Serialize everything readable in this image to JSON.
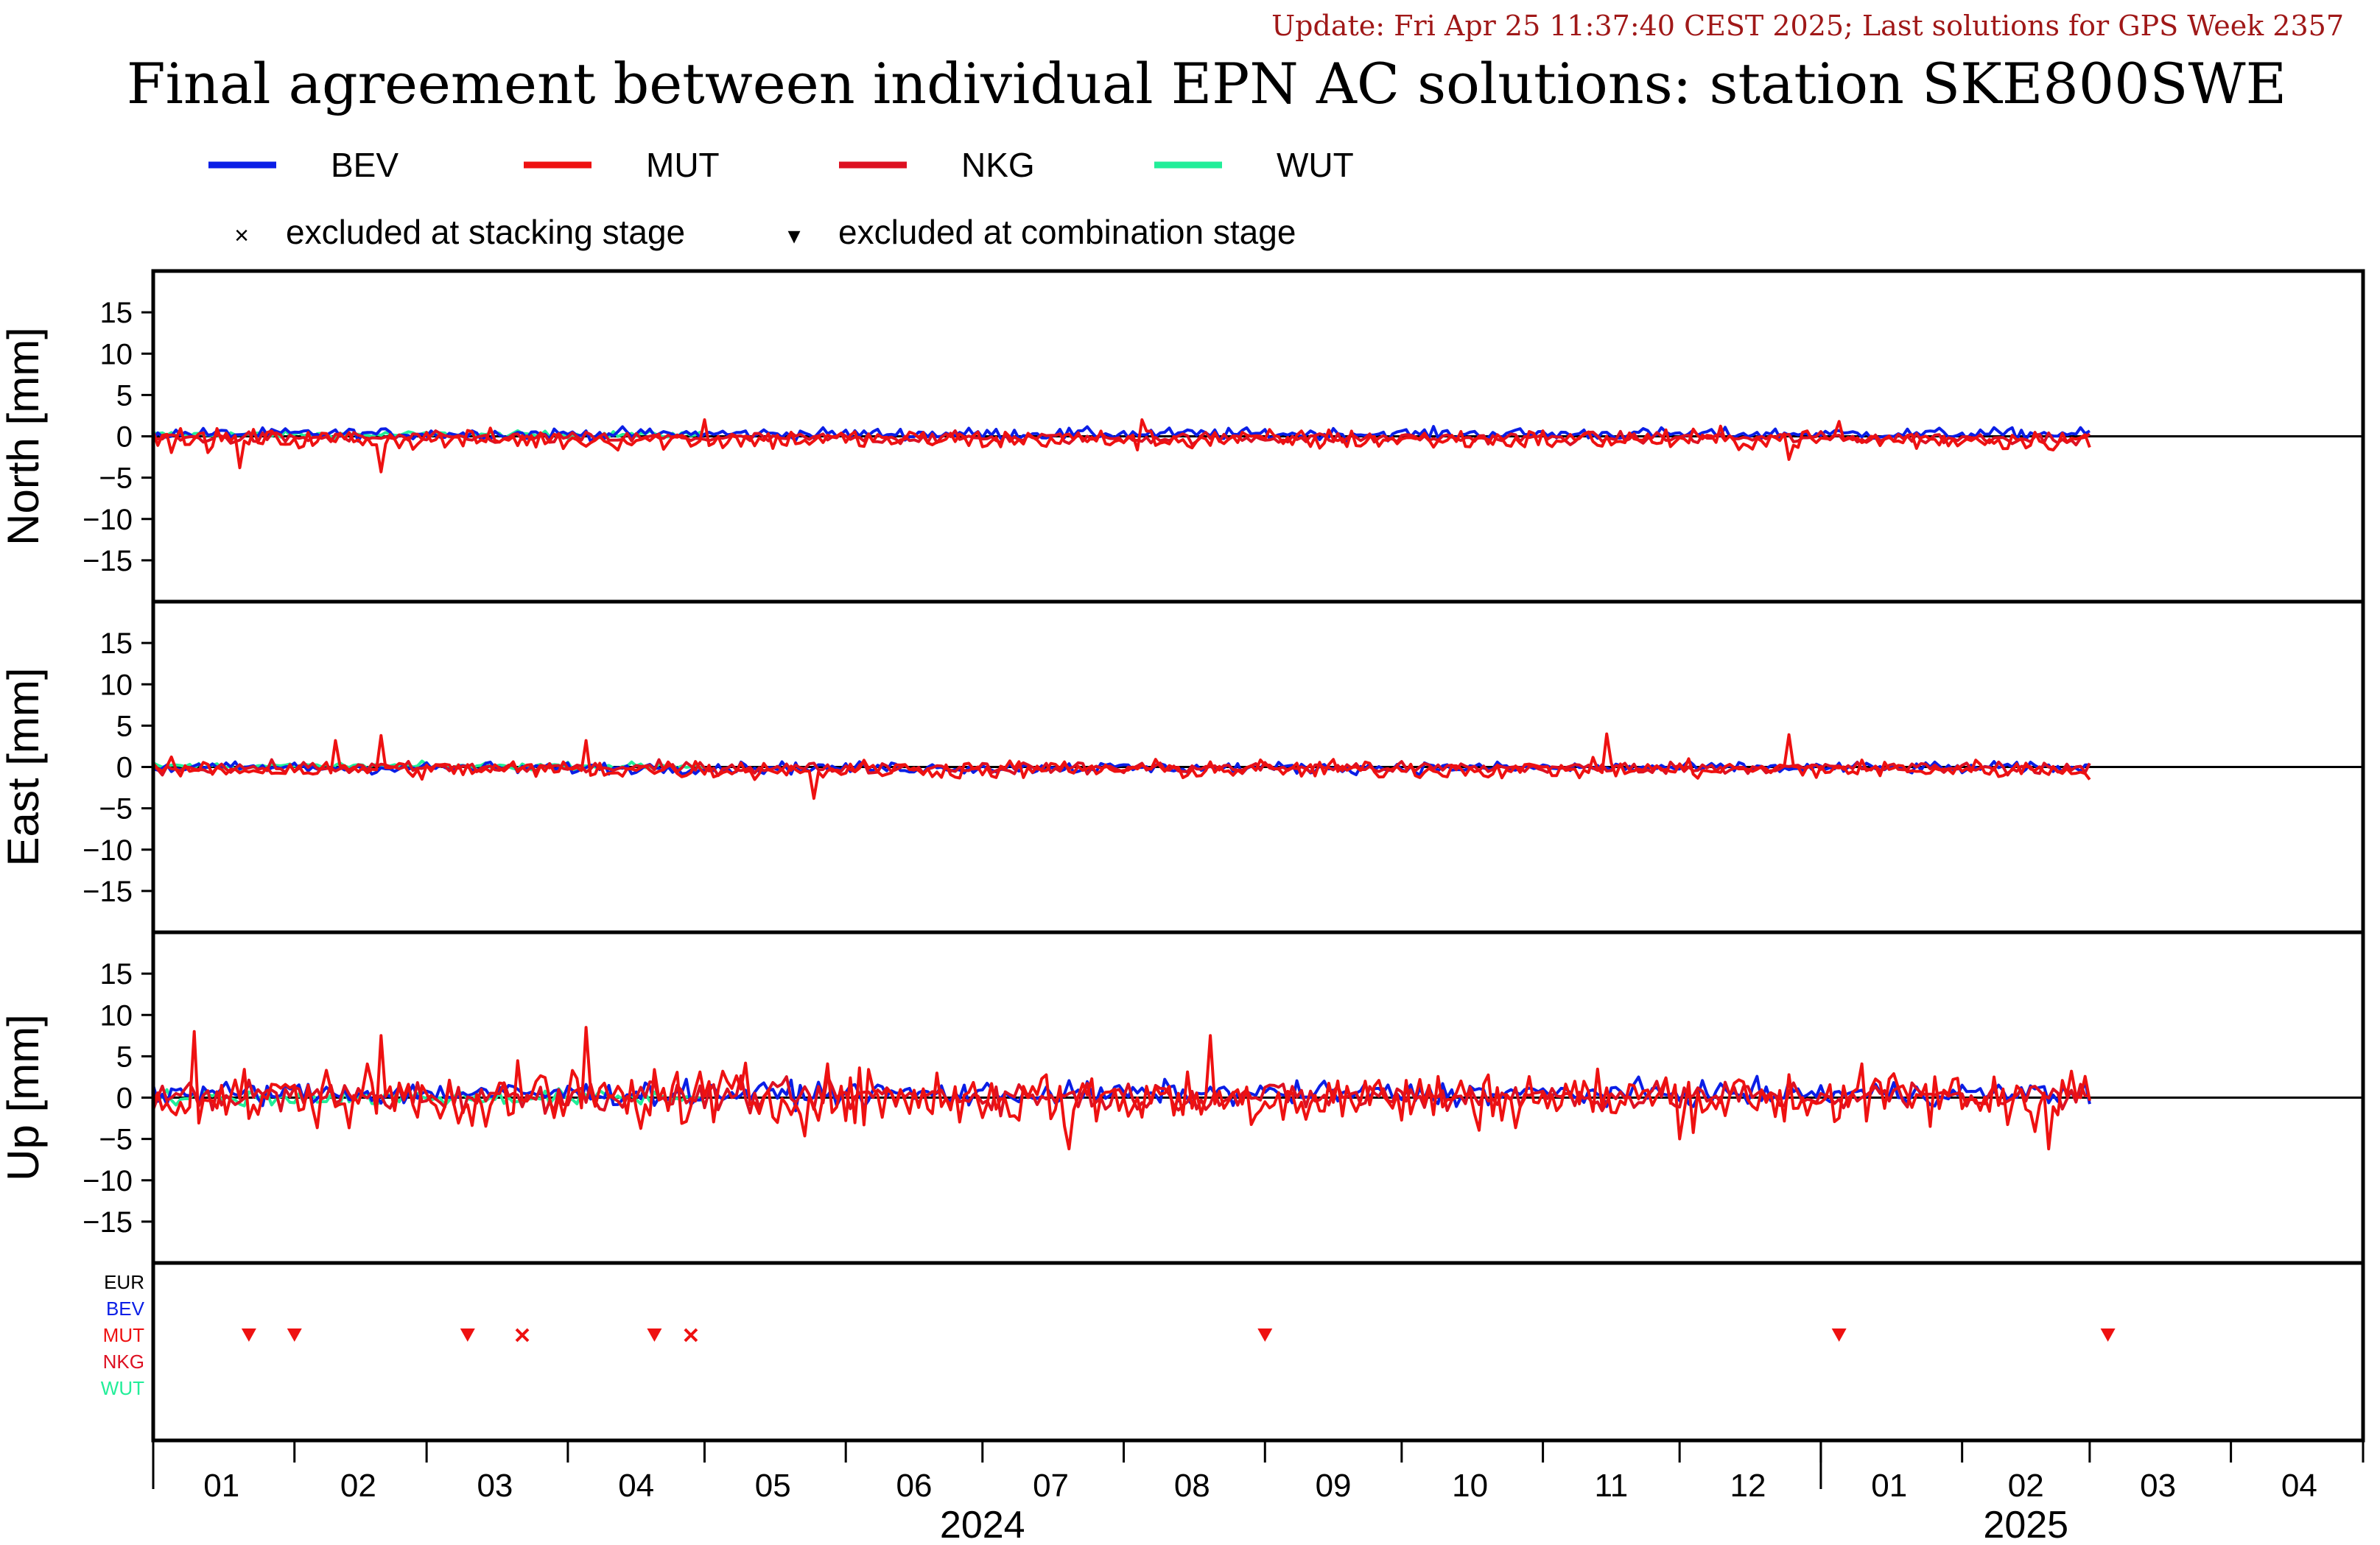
{
  "update_text": "Update: Fri Apr 25 11:37:40 CEST 2025; Last solutions for GPS Week 2357",
  "title": "Final agreement between individual EPN AC solutions: station SKE800SWE",
  "colors": {
    "BEV": "#0a1ee6",
    "MUT": "#ee1111",
    "NKG": "#dd1122",
    "WUT": "#22ee99",
    "EUR": "#000000",
    "markers": "#ee1111"
  },
  "legend": [
    {
      "name": "BEV",
      "color": "#0a1ee6"
    },
    {
      "name": "MUT",
      "color": "#ee1111"
    },
    {
      "name": "NKG",
      "color": "#dd1122"
    },
    {
      "name": "WUT",
      "color": "#22ee99"
    }
  ],
  "marker_legend": {
    "stacking_symbol": "×",
    "stacking_label": "excluded at stacking stage",
    "combination_symbol": "▾",
    "combination_label": "excluded at combination stage"
  },
  "chart_data": {
    "type": "line",
    "x_unit": "date",
    "x_range": [
      "2024-01-01",
      "2025-04-30"
    ],
    "ylim": [
      -20,
      20
    ],
    "ytick_labels": [
      "15",
      "10",
      "5",
      "0",
      "−5",
      "−10",
      "−15"
    ],
    "ytick_values": [
      15,
      10,
      5,
      0,
      -5,
      -10,
      -15
    ],
    "panels": [
      {
        "ylabel": "North [mm]",
        "series": [
          {
            "name": "BEV",
            "amp": 0.5,
            "bias": 0.3
          },
          {
            "name": "MUT",
            "amp": 0.9,
            "bias": -0.4
          },
          {
            "name": "NKG",
            "amp": 0.5,
            "bias": -0.2
          },
          {
            "name": "WUT",
            "amp": 0.3,
            "bias": 0.2
          }
        ]
      },
      {
        "ylabel": "East [mm]",
        "series": [
          {
            "name": "BEV",
            "amp": 0.5,
            "bias": -0.1
          },
          {
            "name": "MUT",
            "amp": 0.8,
            "bias": -0.3
          },
          {
            "name": "NKG",
            "amp": 0.5,
            "bias": -0.1
          },
          {
            "name": "WUT",
            "amp": 0.3,
            "bias": 0.1
          }
        ]
      },
      {
        "ylabel": "Up [mm]",
        "series": [
          {
            "name": "BEV",
            "amp": 1.0,
            "bias": 0.5
          },
          {
            "name": "MUT",
            "amp": 2.6,
            "bias": 0.0
          },
          {
            "name": "NKG",
            "amp": 1.3,
            "bias": 0.2
          },
          {
            "name": "WUT",
            "amp": 0.7,
            "bias": 0.0
          }
        ]
      }
    ],
    "series_start": [
      "2024-01-01",
      "2024-01-01",
      "2024-01-01",
      "2024-01-01"
    ],
    "series_end": [
      "2025-03-01",
      "2025-03-01",
      "2025-03-01",
      "2024-05-01"
    ],
    "spikes": {
      "North": [
        [
          "2024-01-20",
          -3.8
        ],
        [
          "2024-02-20",
          -4.3
        ],
        [
          "2024-05-01",
          2.0
        ],
        [
          "2024-08-05",
          2.0
        ],
        [
          "2024-12-25",
          -2.8
        ],
        [
          "2025-01-05",
          1.8
        ]
      ],
      "East": [
        [
          "2024-02-10",
          3.2
        ],
        [
          "2024-02-20",
          3.8
        ],
        [
          "2024-04-05",
          3.2
        ],
        [
          "2024-05-25",
          -3.8
        ],
        [
          "2024-11-15",
          4.0
        ],
        [
          "2024-12-25",
          3.9
        ]
      ],
      "Up": [
        [
          "2024-01-10",
          8.0
        ],
        [
          "2024-02-20",
          7.5
        ],
        [
          "2024-04-05",
          8.5
        ],
        [
          "2024-08-20",
          7.5
        ],
        [
          "2024-07-20",
          -6.2
        ],
        [
          "2025-02-20",
          -6.2
        ],
        [
          "2025-02-25",
          3.2
        ]
      ]
    },
    "exclusion_rows": [
      "EUR",
      "BEV",
      "MUT",
      "NKG",
      "WUT"
    ],
    "exclusions": [
      {
        "date": "2024-01-22",
        "row": "MUT",
        "type": "combination"
      },
      {
        "date": "2024-02-01",
        "row": "MUT",
        "type": "combination"
      },
      {
        "date": "2024-03-10",
        "row": "MUT",
        "type": "combination"
      },
      {
        "date": "2024-03-22",
        "row": "MUT",
        "type": "stacking"
      },
      {
        "date": "2024-04-20",
        "row": "MUT",
        "type": "combination"
      },
      {
        "date": "2024-04-28",
        "row": "MUT",
        "type": "stacking"
      },
      {
        "date": "2024-09-01",
        "row": "MUT",
        "type": "combination"
      },
      {
        "date": "2025-01-05",
        "row": "MUT",
        "type": "combination"
      },
      {
        "date": "2025-03-05",
        "row": "MUT",
        "type": "combination"
      }
    ],
    "month_labels": [
      {
        "date": "2024-01-16",
        "label": "01"
      },
      {
        "date": "2024-02-15",
        "label": "02"
      },
      {
        "date": "2024-03-16",
        "label": "03"
      },
      {
        "date": "2024-04-16",
        "label": "04"
      },
      {
        "date": "2024-05-16",
        "label": "05"
      },
      {
        "date": "2024-06-16",
        "label": "06"
      },
      {
        "date": "2024-07-16",
        "label": "07"
      },
      {
        "date": "2024-08-16",
        "label": "08"
      },
      {
        "date": "2024-09-16",
        "label": "09"
      },
      {
        "date": "2024-10-16",
        "label": "10"
      },
      {
        "date": "2024-11-16",
        "label": "11"
      },
      {
        "date": "2024-12-16",
        "label": "12"
      },
      {
        "date": "2025-01-16",
        "label": "01"
      },
      {
        "date": "2025-02-15",
        "label": "02"
      },
      {
        "date": "2025-03-16",
        "label": "03"
      },
      {
        "date": "2025-04-16",
        "label": "04"
      }
    ],
    "month_ticks": [
      "2024-01-01",
      "2024-02-01",
      "2024-03-01",
      "2024-04-01",
      "2024-05-01",
      "2024-06-01",
      "2024-07-01",
      "2024-08-01",
      "2024-09-01",
      "2024-10-01",
      "2024-11-01",
      "2024-12-01",
      "2025-01-01",
      "2025-02-01",
      "2025-03-01",
      "2025-04-01",
      "2025-04-30"
    ],
    "year_ticks": [
      "2025-01-01"
    ],
    "year_labels": [
      {
        "date": "2024-07-01",
        "label": "2024"
      },
      {
        "date": "2025-02-15",
        "label": "2025"
      }
    ],
    "grid": false
  }
}
